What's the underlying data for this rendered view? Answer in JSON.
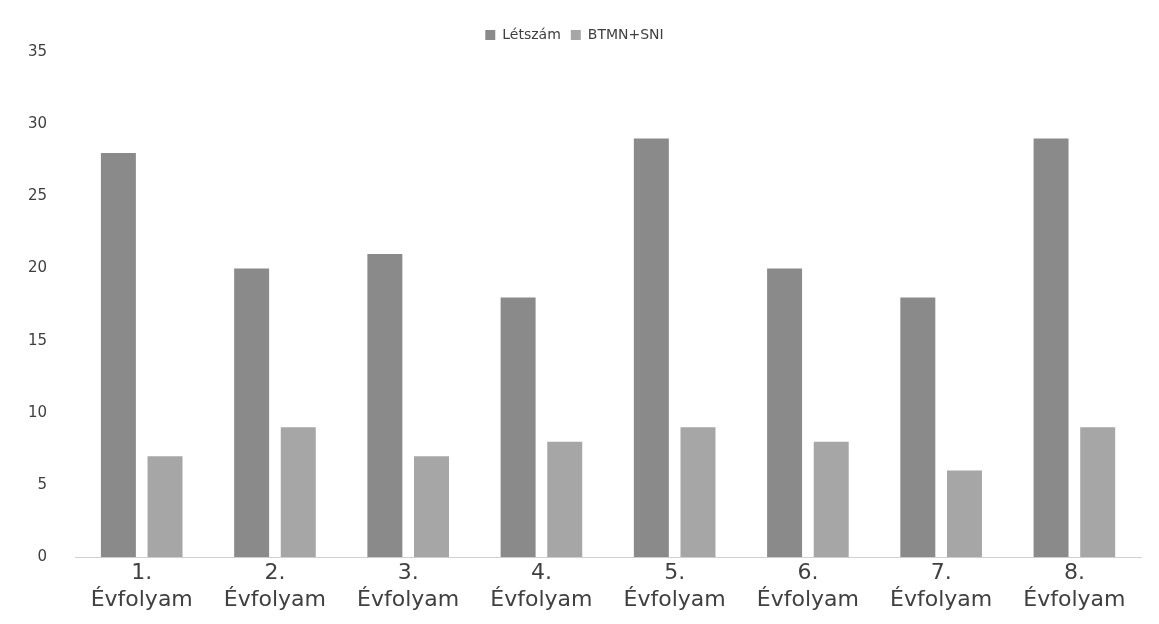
{
  "chart_data": {
    "type": "bar",
    "categories": [
      "1. Évfolyam",
      "2. Évfolyam",
      "3. Évfolyam",
      "4. Évfolyam",
      "5. Évfolyam",
      "6. Évfolyam",
      "7. Évfolyam",
      "8. Évfolyam"
    ],
    "series": [
      {
        "name": "Létszám",
        "color": "#8a8a8a",
        "values": [
          28,
          20,
          21,
          18,
          29,
          20,
          18,
          29
        ]
      },
      {
        "name": "BTMN+SNI",
        "color": "#a6a6a6",
        "values": [
          7,
          9,
          7,
          8,
          9,
          8,
          6,
          9
        ]
      }
    ],
    "ylim": [
      0,
      35
    ],
    "yticks": [
      0,
      5,
      10,
      15,
      20,
      25,
      30,
      35
    ],
    "grid": false,
    "legend": "top"
  }
}
